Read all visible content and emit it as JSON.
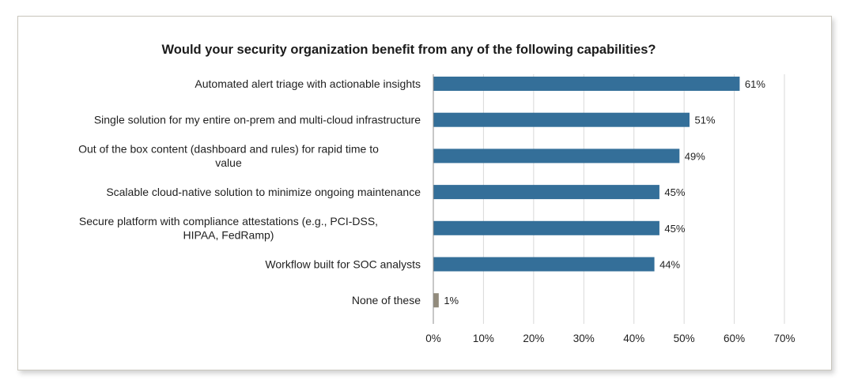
{
  "chart_data": {
    "type": "bar",
    "orientation": "horizontal",
    "title": "Would your security organization benefit from any of the following capabilities?",
    "categories": [
      [
        "Automated alert triage with actionable insights"
      ],
      [
        "Single solution for my entire on-prem and multi-cloud infrastructure"
      ],
      [
        "Out of the box content (dashboard and rules) for rapid time to",
        "value"
      ],
      [
        "Scalable cloud-native solution to minimize ongoing maintenance"
      ],
      [
        "Secure platform with compliance attestations (e.g., PCI-DSS,",
        "HIPAA, FedRamp)"
      ],
      [
        "Workflow built for SOC analysts"
      ],
      [
        "None of these"
      ]
    ],
    "values": [
      61,
      51,
      49,
      45,
      45,
      44,
      1
    ],
    "value_labels": [
      "61%",
      "51%",
      "49%",
      "45%",
      "45%",
      "44%",
      "1%"
    ],
    "bar_colors": [
      "#346f99",
      "#346f99",
      "#346f99",
      "#346f99",
      "#346f99",
      "#346f99",
      "#928b7c"
    ],
    "xlim": [
      0,
      70
    ],
    "xticks": [
      0,
      10,
      20,
      30,
      40,
      50,
      60,
      70
    ],
    "xtick_labels": [
      "0%",
      "10%",
      "20%",
      "30%",
      "40%",
      "50%",
      "60%",
      "70%"
    ],
    "gridlines": true,
    "legend": "none"
  }
}
